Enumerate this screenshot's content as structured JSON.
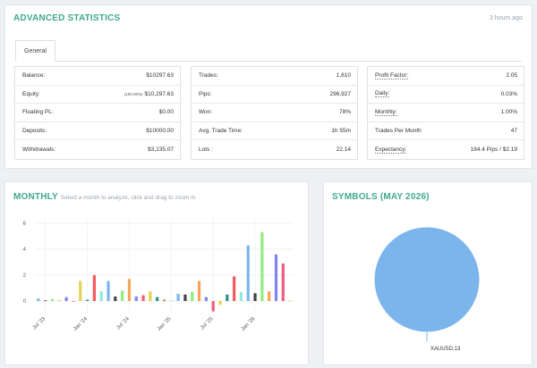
{
  "stats": {
    "title": "ADVANCED STATISTICS",
    "timestamp": "3 hours ago",
    "tab_general": "General",
    "col1": [
      {
        "label": "Balance:",
        "value": "$10297.63"
      },
      {
        "label": "Equity:",
        "value_small": "(100.00%)",
        "value": "$10,297.63"
      },
      {
        "label": "Floating PL:",
        "value": "$0.00"
      },
      {
        "label": "Deposits:",
        "value": "$10000.00"
      },
      {
        "label": "Withdrawals:",
        "value": "$3,235.07"
      }
    ],
    "col2": [
      {
        "label": "Trades:",
        "value": "1,610"
      },
      {
        "label": "Pips:",
        "value": "296,927"
      },
      {
        "label": "Won:",
        "value": "78%"
      },
      {
        "label": "Avg. Trade Time:",
        "value": "1h 55m"
      },
      {
        "label": "Lots :",
        "value": "22.14"
      }
    ],
    "col3": [
      {
        "label": "Profit Factor:",
        "value": "2.05"
      },
      {
        "label": "Daily:",
        "value": "0.03%"
      },
      {
        "label": "Monthly:",
        "value": "1.00%"
      },
      {
        "label": "Trades Per Month",
        "value": "47"
      },
      {
        "label": "Expectancy:",
        "value": "184.4 Pips / $2.19"
      }
    ]
  },
  "monthly": {
    "title": "MONTHLY",
    "subtitle": "Select a month to analyze, click and drag to zoom in"
  },
  "symbols": {
    "title": "SYMBOLS (MAY 2026)",
    "label": "XAUUSD,13",
    "color": "#7cb5ec"
  },
  "chart_data": [
    {
      "type": "bar",
      "title": "MONTHLY",
      "ylim": [
        -1,
        6
      ],
      "yticks": [
        "6",
        "4",
        "2",
        "0"
      ],
      "xticks": [
        "Jul '23",
        "Jan '24",
        "Jul '24",
        "Jan '25",
        "Jul '25",
        "Jan '26"
      ],
      "grid": true,
      "values": [
        0.2,
        0.05,
        0.15,
        0.05,
        0.3,
        0.0,
        1.55,
        0.1,
        2.0,
        0.75,
        1.55,
        0.35,
        0.8,
        1.7,
        0.35,
        0.45,
        0.75,
        0.3,
        0.1,
        0.05,
        0.55,
        0.5,
        0.7,
        1.55,
        0.3,
        -0.8,
        -0.3,
        0.5,
        1.9,
        0.7,
        4.3,
        0.6,
        5.3,
        0.75,
        3.6,
        2.9,
        0.05
      ],
      "colors": [
        "#7cb5ec",
        "#434348",
        "#90ed7d",
        "#f7a35c",
        "#8085e9",
        "#f15c80",
        "#e4d354",
        "#2b908f",
        "#f45b5b",
        "#91e8e1"
      ]
    },
    {
      "type": "pie",
      "title": "SYMBOLS (MAY 2026)",
      "slices": [
        {
          "label": "XAUUSD,13",
          "value": 13
        }
      ]
    }
  ]
}
